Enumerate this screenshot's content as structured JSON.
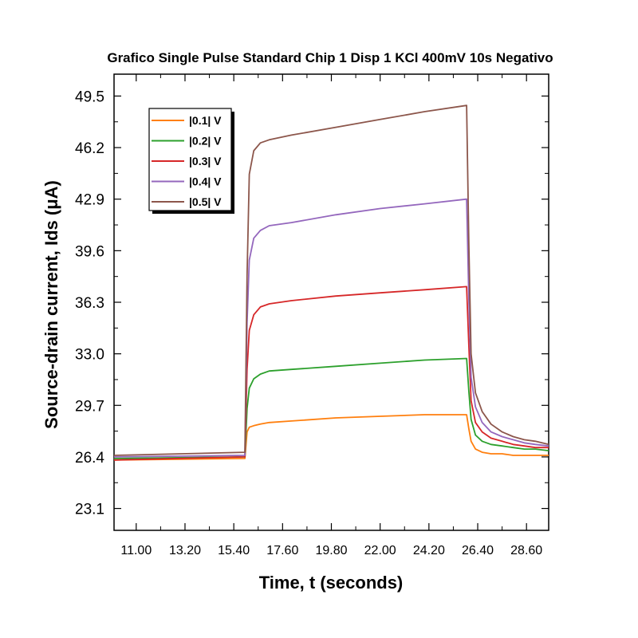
{
  "chart_data": {
    "type": "line",
    "title": "Grafico Single Pulse Standard Chip 1 Disp 1 KCl 400mV 10s Negativo",
    "xlabel": "Time, t (seconds)",
    "ylabel": "Source-drain current, Ids (μA)",
    "xlim": [
      10.0,
      29.6
    ],
    "ylim": [
      21.7,
      50.9
    ],
    "xticks": [
      11.0,
      13.2,
      15.4,
      17.6,
      19.8,
      22.0,
      24.2,
      26.4,
      28.6
    ],
    "xtick_labels": [
      "11.00",
      "13.20",
      "15.40",
      "17.60",
      "19.80",
      "22.00",
      "24.20",
      "26.40",
      "28.60"
    ],
    "yticks": [
      23.1,
      26.4,
      29.7,
      33.0,
      36.3,
      39.6,
      42.9,
      46.2,
      49.5
    ],
    "ytick_labels": [
      "23.1",
      "26.4",
      "29.7",
      "33.0",
      "36.3",
      "39.6",
      "42.9",
      "46.2",
      "49.5"
    ],
    "legend_position": "top-left",
    "grid": false,
    "x": [
      10.0,
      15.9,
      16.0,
      16.1,
      16.3,
      16.6,
      17.0,
      18.0,
      20.0,
      22.0,
      24.0,
      25.9,
      26.0,
      26.1,
      26.3,
      26.6,
      27.0,
      27.5,
      28.0,
      28.5,
      29.0,
      29.6
    ],
    "series": [
      {
        "name": "|0.1| V",
        "color": "#ff7f0e",
        "values": [
          26.2,
          26.3,
          28.0,
          28.3,
          28.4,
          28.5,
          28.6,
          28.7,
          28.9,
          29.0,
          29.1,
          29.1,
          28.2,
          27.4,
          26.9,
          26.7,
          26.6,
          26.6,
          26.5,
          26.5,
          26.5,
          26.5
        ]
      },
      {
        "name": "|0.2| V",
        "color": "#2ca02c",
        "values": [
          26.3,
          26.4,
          29.5,
          30.8,
          31.4,
          31.7,
          31.9,
          32.0,
          32.2,
          32.4,
          32.6,
          32.7,
          30.6,
          28.8,
          27.8,
          27.4,
          27.2,
          27.1,
          27.0,
          26.9,
          26.9,
          26.8
        ]
      },
      {
        "name": "|0.3| V",
        "color": "#d62728",
        "values": [
          26.2,
          26.4,
          32.0,
          34.5,
          35.5,
          36.0,
          36.2,
          36.4,
          36.7,
          36.9,
          37.1,
          37.3,
          33.5,
          30.0,
          28.6,
          28.0,
          27.6,
          27.4,
          27.2,
          27.1,
          27.0,
          27.0
        ]
      },
      {
        "name": "|0.4| V",
        "color": "#9467bd",
        "values": [
          26.4,
          26.5,
          35.0,
          39.0,
          40.4,
          40.9,
          41.2,
          41.4,
          41.9,
          42.3,
          42.6,
          42.9,
          36.5,
          31.5,
          29.6,
          28.6,
          28.0,
          27.7,
          27.5,
          27.3,
          27.2,
          27.1
        ]
      },
      {
        "name": "|0.5| V",
        "color": "#8c564b",
        "values": [
          26.5,
          26.7,
          38.0,
          44.5,
          46.0,
          46.5,
          46.7,
          47.0,
          47.5,
          48.0,
          48.5,
          48.9,
          40.0,
          33.0,
          30.5,
          29.3,
          28.5,
          28.0,
          27.7,
          27.5,
          27.4,
          27.2
        ]
      }
    ]
  }
}
